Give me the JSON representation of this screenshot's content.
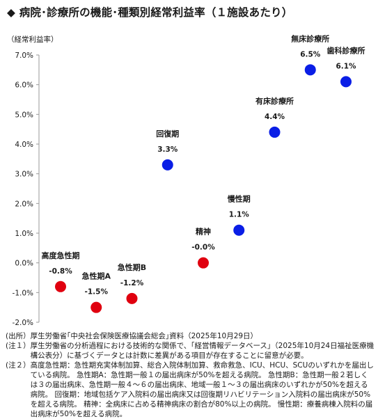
{
  "title": "◆ 病院･診療所の機能･種類別経常利益率（１施設あたり）",
  "unit_label": "（経常利益率）",
  "colors": {
    "red": "#e0000f",
    "blue": "#0a1ee6"
  },
  "chart_data": {
    "type": "scatter",
    "title": "◆ 病院･診療所の機能･種類別経常利益率（１施設あたり）",
    "ylabel": "（経常利益率）",
    "ylim": [
      -2.0,
      7.0
    ],
    "yticks": [
      -2.0,
      -1.0,
      0.0,
      1.0,
      2.0,
      3.0,
      4.0,
      5.0,
      6.0,
      7.0
    ],
    "ytick_labels": [
      "-2.0%",
      "-1.0%",
      "0.0%",
      "1.0%",
      "2.0%",
      "3.0%",
      "4.0%",
      "5.0%",
      "6.0%",
      "7.0%"
    ],
    "grid": false,
    "points": [
      {
        "name": "高度急性期",
        "value": -0.8,
        "label": "-0.8%",
        "color": "red"
      },
      {
        "name": "急性期A",
        "value": -1.5,
        "label": "-1.5%",
        "color": "red"
      },
      {
        "name": "急性期B",
        "value": -1.2,
        "label": "-1.2%",
        "color": "red"
      },
      {
        "name": "回復期",
        "value": 3.3,
        "label": "3.3%",
        "color": "blue"
      },
      {
        "name": "精神",
        "value": -0.0,
        "label": "-0.0%",
        "color": "red"
      },
      {
        "name": "慢性期",
        "value": 1.1,
        "label": "1.1%",
        "color": "blue"
      },
      {
        "name": "有床診療所",
        "value": 4.4,
        "label": "4.4%",
        "color": "blue"
      },
      {
        "name": "無床診療所",
        "value": 6.5,
        "label": "6.5%",
        "color": "blue"
      },
      {
        "name": "歯科診療所",
        "value": 6.1,
        "label": "6.1%",
        "color": "blue"
      }
    ]
  },
  "notes": [
    {
      "prefix": "(出所）",
      "text": "厚生労働省｢中央社会保険医療協議会総会｣資料（2025年10月29日）"
    },
    {
      "prefix": "(注１）",
      "text": "厚生労働省の分析過程における技術的な関係で、「経営情報データベース」（2025年10月24日福祉医療機構公表分）に基づくデータとは計数に差異がある項目が存在することに留意が必要。"
    },
    {
      "prefix": "(注２）",
      "text": "高度急性期：急性期充実体制加算、総合入院体制加算、救命救急、ICU、HCU、SCUのいずれかを届出している病院。 急性期A：急性期一般１の届出病床が50%を超える病院。 急性期B：急性期一般２若しくは３の届出病床、急性期一般４～６の届出病床、地域一般１～３の届出病床のいずれかが50%を超える病院。 回復期：地域包括ケア入院料の届出病床又は回復期リハビリテーション入院料の届出病床が50%を超える病院。 精神：全病床に占める精神病床の割合が80%以上の病院。 慢性期：療養病棟入院料の届出病床が50%を超える病院。"
    }
  ]
}
